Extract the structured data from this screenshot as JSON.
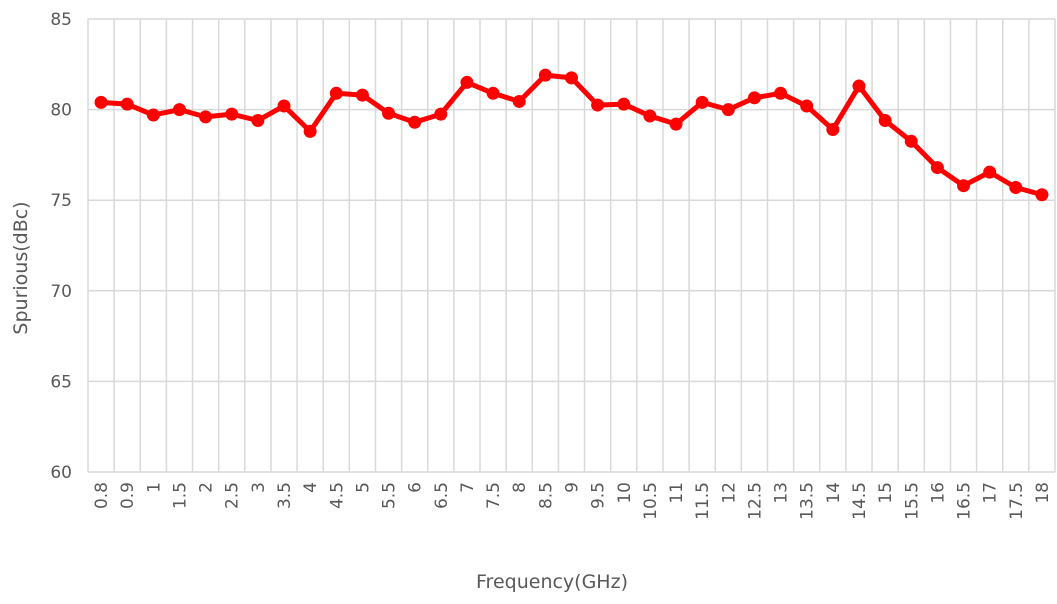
{
  "chart_data": {
    "type": "line",
    "x_label": "Frequency(GHz)",
    "y_label": "Spurious(dBc)",
    "categories": [
      "0.8",
      "0.9",
      "1",
      "1.5",
      "2",
      "2.5",
      "3",
      "3.5",
      "4",
      "4.5",
      "5",
      "5.5",
      "6",
      "6.5",
      "7",
      "7.5",
      "8",
      "8.5",
      "9",
      "9.5",
      "10",
      "10.5",
      "11",
      "11.5",
      "12",
      "12.5",
      "13",
      "13.5",
      "14",
      "14.5",
      "15",
      "15.5",
      "16",
      "16.5",
      "17",
      "17.5",
      "18"
    ],
    "values": [
      80.4,
      80.3,
      79.7,
      80.0,
      79.6,
      79.75,
      79.4,
      80.2,
      78.8,
      80.9,
      80.8,
      79.8,
      79.3,
      79.75,
      81.5,
      80.9,
      80.45,
      81.9,
      81.75,
      80.25,
      80.3,
      79.65,
      79.2,
      80.4,
      80.0,
      80.65,
      80.9,
      80.2,
      78.9,
      81.3,
      79.4,
      78.25,
      76.8,
      75.8,
      76.55,
      75.7,
      75.3
    ],
    "color": "#ff0000",
    "ylim": [
      60,
      85
    ],
    "yticks": [
      60,
      65,
      70,
      75,
      80,
      85
    ],
    "grid": true
  }
}
